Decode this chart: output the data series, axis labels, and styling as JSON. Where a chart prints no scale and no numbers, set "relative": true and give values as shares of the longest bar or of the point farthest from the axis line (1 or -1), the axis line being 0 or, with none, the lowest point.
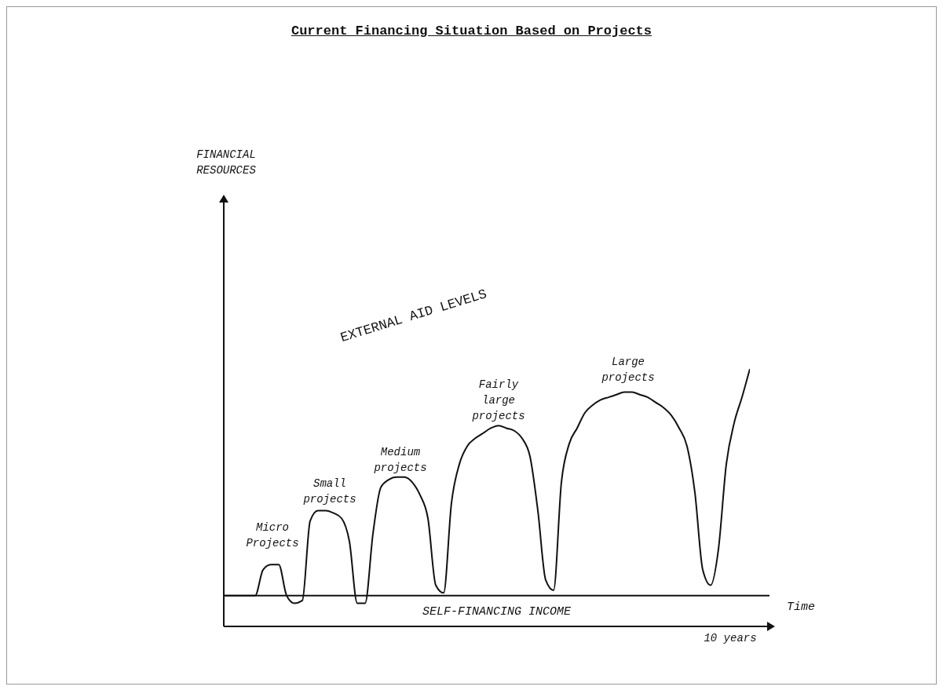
{
  "chart_data": {
    "type": "line",
    "title": "Current Financing Situation Based on Projects",
    "xlabel": "Time",
    "relative": true,
    "categories": [
      null,
      null,
      null,
      null,
      null,
      null,
      null,
      null,
      null,
      null,
      null,
      null,
      null,
      null,
      null,
      null,
      null,
      null,
      null,
      null,
      null,
      null,
      null,
      null,
      null,
      null,
      null,
      null,
      null,
      null,
      null,
      null,
      null,
      null,
      null,
      null,
      null,
      null,
      null,
      null,
      null,
      null,
      null,
      null,
      null,
      null,
      null,
      null,
      null,
      null,
      null,
      null,
      null,
      null,
      null,
      null,
      null,
      null,
      null,
      null,
      null,
      null,
      null,
      null,
      null,
      null,
      null,
      null
    ],
    "series": [
      {
        "color": "#111111",
        "values": [
          0.12,
          0.12,
          0.12,
          0.12,
          0.12,
          0.22,
          0.24,
          0.24,
          0.12,
          0.09,
          0.1,
          0.41,
          0.45,
          0.45,
          0.44,
          0.42,
          0.33,
          0.09,
          0.09,
          0.36,
          0.54,
          0.57,
          0.58,
          0.58,
          0.56,
          0.51,
          0.42,
          0.16,
          0.13,
          0.48,
          0.63,
          0.7,
          0.73,
          0.75,
          0.77,
          0.78,
          0.77,
          0.76,
          0.73,
          0.66,
          0.45,
          0.18,
          0.14,
          0.56,
          0.71,
          0.77,
          0.83,
          0.86,
          0.88,
          0.89,
          0.9,
          0.91,
          0.91,
          0.9,
          0.89,
          0.87,
          0.85,
          0.82,
          0.77,
          0.7,
          0.52,
          0.22,
          0.16,
          0.3,
          0.63,
          0.79,
          0.89,
          1
        ]
      }
    ],
    "ref_lines": [
      {
        "axis": "y",
        "value": 0.12,
        "label": "SELF-FINANCING INCOME",
        "color": "#111111"
      }
    ],
    "annotations": [
      "Micro\nProjects",
      "Small\nprojects",
      "Medium\nprojects",
      "Fairly\nlarge\nprojects",
      "Large\nprojects",
      "EXTERNAL AID LEVELS",
      "10 years",
      "FINANCIAL\nRESOURCES"
    ]
  }
}
